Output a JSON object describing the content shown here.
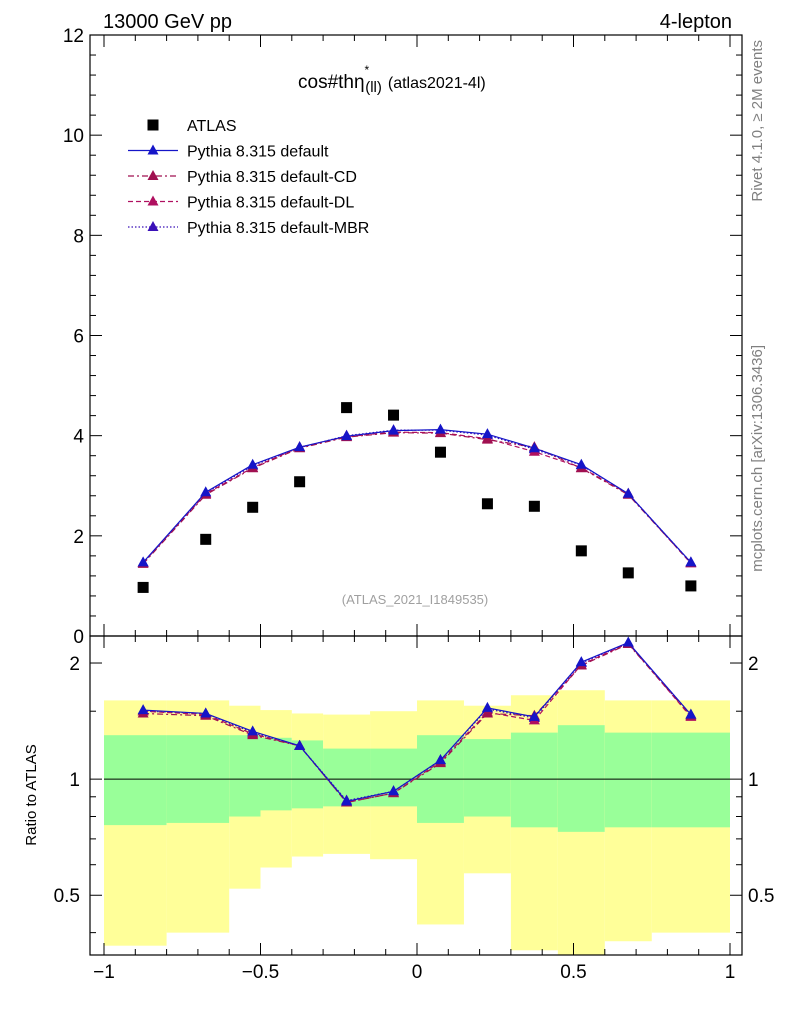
{
  "header": {
    "left": "13000 GeV pp",
    "right": "4-lepton"
  },
  "side_labels": {
    "rivet": "Rivet 4.1.0, ≥ 2M events",
    "mcplots": "mcplots.cern.ch [arXiv:1306.3436]"
  },
  "colors": {
    "default": "#1515c8",
    "cd": "#a01050",
    "dl": "#b01060",
    "mbr": "#3a10b8",
    "band_green": "#99ff99",
    "band_yellow": "#ffff99",
    "data": "#000000"
  },
  "chart_data": [
    {
      "type": "scatter",
      "title_main": "cos#thη",
      "title_sup": "*",
      "title_sub": "(ll)",
      "title_tail": "(atlas2021-4l)",
      "watermark": "(ATLAS_2021_I1849535)",
      "xlim": [
        -1,
        1
      ],
      "ylim": [
        0,
        12
      ],
      "yticks": [
        0,
        2,
        4,
        6,
        8,
        10,
        12
      ],
      "ytick_labels": [
        "0",
        "2",
        "4",
        "6",
        "8",
        "10",
        "12"
      ],
      "x": [
        -0.875,
        -0.675,
        -0.525,
        -0.375,
        -0.225,
        -0.075,
        0.075,
        0.225,
        0.375,
        0.525,
        0.675,
        0.875
      ],
      "series": [
        {
          "name": "ATLAS",
          "style": "data",
          "values": [
            0.97,
            1.93,
            2.57,
            3.08,
            4.56,
            4.41,
            3.67,
            2.64,
            2.59,
            1.7,
            1.26,
            1.0
          ]
        },
        {
          "name": "Pythia 8.315 default",
          "style": "solid",
          "values": [
            1.47,
            2.87,
            3.42,
            3.77,
            3.99,
            4.1,
            4.12,
            4.03,
            3.75,
            3.42,
            2.84,
            1.47
          ]
        },
        {
          "name": "Pythia 8.315 default-CD",
          "style": "dashdot",
          "values": [
            1.44,
            2.82,
            3.35,
            3.75,
            3.97,
            4.06,
            4.05,
            3.92,
            3.77,
            3.35,
            2.82,
            1.46
          ]
        },
        {
          "name": "Pythia 8.315 default-DL",
          "style": "dashed",
          "values": [
            1.46,
            2.84,
            3.36,
            3.77,
            3.98,
            4.07,
            4.06,
            3.94,
            3.68,
            3.36,
            2.84,
            1.45
          ]
        },
        {
          "name": "Pythia 8.315 default-MBR",
          "style": "dotted",
          "values": [
            1.46,
            2.85,
            3.4,
            3.76,
            4.0,
            4.11,
            4.11,
            4.01,
            3.73,
            3.41,
            2.84,
            1.47
          ]
        }
      ],
      "legend_position": "top-left"
    },
    {
      "type": "line",
      "ylabel": "Ratio to ATLAS",
      "yscale": "log",
      "xlim": [
        -1,
        1
      ],
      "ylim": [
        0.35,
        2.35
      ],
      "yticks": [
        0.5,
        1,
        2
      ],
      "ytick_labels": [
        "0.5",
        "1",
        "2"
      ],
      "xticks": [
        -1,
        -0.5,
        0,
        0.5,
        1
      ],
      "xtick_labels": [
        "−1",
        "−0.5",
        "0",
        "0.5",
        "1"
      ],
      "bins": [
        -1,
        -0.8,
        -0.6,
        -0.5,
        -0.4,
        -0.3,
        -0.15,
        0,
        0.15,
        0.3,
        0.45,
        0.6,
        0.75,
        1.0
      ],
      "band_green_lo": [
        0.76,
        0.77,
        0.8,
        0.83,
        0.84,
        0.85,
        0.85,
        0.77,
        0.8,
        0.75,
        0.73,
        0.75,
        0.75
      ],
      "band_green_hi": [
        1.3,
        1.3,
        1.3,
        1.28,
        1.26,
        1.2,
        1.2,
        1.3,
        1.27,
        1.32,
        1.38,
        1.32,
        1.32
      ],
      "band_yellow_lo": [
        0.37,
        0.4,
        0.52,
        0.59,
        0.63,
        0.64,
        0.62,
        0.42,
        0.57,
        0.36,
        0.35,
        0.38,
        0.4
      ],
      "band_yellow_hi": [
        1.6,
        1.6,
        1.55,
        1.51,
        1.48,
        1.47,
        1.5,
        1.6,
        1.55,
        1.65,
        1.7,
        1.6,
        1.6
      ],
      "x": [
        -0.875,
        -0.675,
        -0.525,
        -0.375,
        -0.225,
        -0.075,
        0.075,
        0.225,
        0.375,
        0.525,
        0.675,
        0.875
      ],
      "series": [
        {
          "name": "Pythia 8.315 default",
          "style": "solid",
          "values": [
            1.51,
            1.48,
            1.33,
            1.22,
            0.875,
            0.93,
            1.12,
            1.53,
            1.45,
            2.01,
            2.26,
            1.47
          ]
        },
        {
          "name": "Pythia 8.315 default-CD",
          "style": "dashdot",
          "values": [
            1.48,
            1.46,
            1.3,
            1.22,
            0.87,
            0.92,
            1.1,
            1.48,
            1.46,
            1.97,
            2.24,
            1.46
          ]
        },
        {
          "name": "Pythia 8.315 default-DL",
          "style": "dashed",
          "values": [
            1.5,
            1.47,
            1.31,
            1.22,
            0.87,
            0.92,
            1.11,
            1.49,
            1.42,
            1.98,
            2.25,
            1.45
          ]
        },
        {
          "name": "Pythia 8.315 default-MBR",
          "style": "dotted",
          "values": [
            1.5,
            1.48,
            1.32,
            1.22,
            0.88,
            0.93,
            1.12,
            1.52,
            1.44,
            2.0,
            2.25,
            1.47
          ]
        }
      ]
    }
  ]
}
